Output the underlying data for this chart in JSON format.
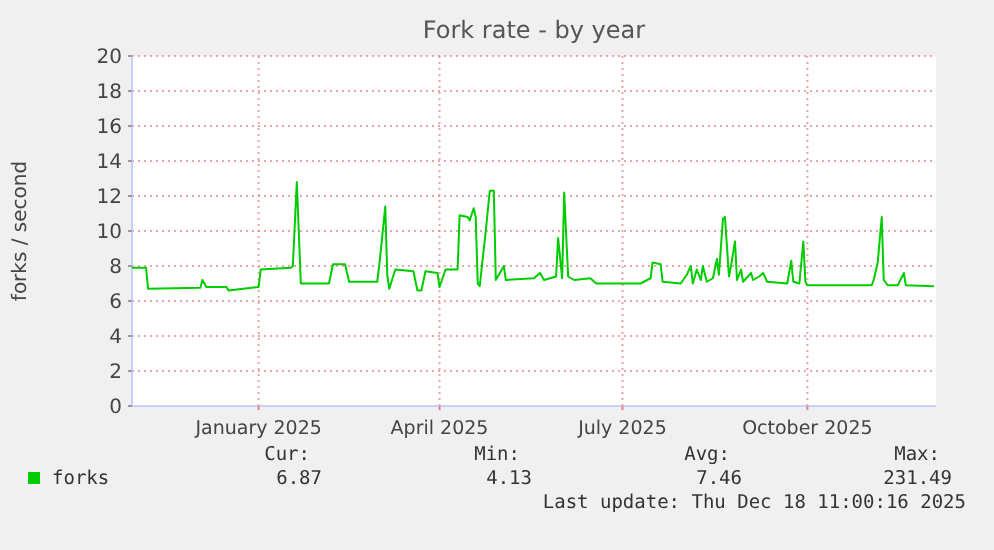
{
  "chart_data": {
    "type": "line",
    "title": "Fork rate - by year",
    "ylabel": "forks / second",
    "xlim": [
      "2024-11-13",
      "2025-12-18"
    ],
    "xticks": [
      {
        "value": "2025-01-15",
        "label": "January 2025"
      },
      {
        "value": "2025-04-15",
        "label": "April 2025"
      },
      {
        "value": "2025-07-15",
        "label": "July 2025"
      },
      {
        "value": "2025-10-15",
        "label": "October 2025"
      }
    ],
    "ylim": [
      0,
      20
    ],
    "yticks": [
      0,
      2,
      4,
      6,
      8,
      10,
      12,
      14,
      16,
      18,
      20
    ],
    "grid": true,
    "legend": "bottom left",
    "marker": "none",
    "line_style": "solid",
    "x": [
      "2024-11-13",
      "2024-11-20",
      "2024-11-21",
      "2024-12-17",
      "2024-12-18",
      "2024-12-20",
      "2024-12-30",
      "2024-12-31",
      "2025-01-15",
      "2025-01-16",
      "2025-01-31",
      "2025-02-01",
      "2025-02-03",
      "2025-02-05",
      "2025-02-19",
      "2025-02-21",
      "2025-02-27",
      "2025-03-01",
      "2025-03-15",
      "2025-03-16",
      "2025-03-19",
      "2025-03-20",
      "2025-03-21",
      "2025-03-24",
      "2025-04-02",
      "2025-04-04",
      "2025-04-06",
      "2025-04-08",
      "2025-04-14",
      "2025-04-15",
      "2025-04-18",
      "2025-04-24",
      "2025-04-25",
      "2025-04-29",
      "2025-04-30",
      "2025-05-02",
      "2025-05-03",
      "2025-05-04",
      "2025-05-05",
      "2025-05-08",
      "2025-05-10",
      "2025-05-12",
      "2025-05-13",
      "2025-05-17",
      "2025-05-18",
      "2025-06-01",
      "2025-06-04",
      "2025-06-06",
      "2025-06-12",
      "2025-06-13",
      "2025-06-15",
      "2025-06-16",
      "2025-06-18",
      "2025-06-21",
      "2025-06-29",
      "2025-07-02",
      "2025-07-24",
      "2025-07-29",
      "2025-07-30",
      "2025-08-03",
      "2025-08-04",
      "2025-08-13",
      "2025-08-16",
      "2025-08-18",
      "2025-08-19",
      "2025-08-21",
      "2025-08-23",
      "2025-08-24",
      "2025-08-26",
      "2025-08-29",
      "2025-08-31",
      "2025-09-01",
      "2025-09-03",
      "2025-09-04",
      "2025-09-06",
      "2025-09-07",
      "2025-09-09",
      "2025-09-10",
      "2025-09-12",
      "2025-09-13",
      "2025-09-17",
      "2025-09-18",
      "2025-09-21",
      "2025-09-23",
      "2025-09-25",
      "2025-10-05",
      "2025-10-07",
      "2025-10-08",
      "2025-10-11",
      "2025-10-13",
      "2025-10-14",
      "2025-10-15",
      "2025-11-16",
      "2025-11-17",
      "2025-11-19",
      "2025-11-21",
      "2025-11-22",
      "2025-11-24",
      "2025-11-29",
      "2025-12-02",
      "2025-12-03",
      "2025-12-17"
    ],
    "series": [
      {
        "name": "forks",
        "color": "#00cc00",
        "values": [
          7.9,
          7.9,
          6.7,
          6.75,
          7.2,
          6.8,
          6.8,
          6.6,
          6.8,
          7.8,
          7.9,
          8.0,
          12.8,
          7.0,
          7.0,
          8.1,
          8.1,
          7.1,
          7.1,
          8.0,
          11.4,
          7.5,
          6.7,
          7.8,
          7.7,
          6.6,
          6.6,
          7.7,
          7.6,
          6.8,
          7.8,
          7.8,
          10.9,
          10.8,
          10.6,
          11.3,
          10.8,
          7.0,
          6.85,
          10.0,
          12.3,
          12.3,
          7.2,
          8.0,
          7.2,
          7.3,
          7.6,
          7.2,
          7.4,
          9.6,
          7.3,
          12.2,
          7.4,
          7.2,
          7.3,
          7.0,
          7.0,
          7.3,
          8.2,
          8.1,
          7.1,
          7.0,
          7.5,
          8.0,
          7.0,
          7.8,
          7.2,
          8.0,
          7.1,
          7.3,
          8.4,
          7.5,
          10.7,
          10.8,
          7.4,
          8.0,
          9.4,
          7.2,
          7.8,
          7.1,
          7.6,
          7.2,
          7.4,
          7.6,
          7.1,
          7.0,
          8.3,
          7.1,
          7.0,
          9.4,
          7.1,
          6.9,
          6.9,
          7.2,
          8.2,
          10.8,
          7.2,
          6.9,
          6.9,
          7.6,
          6.9,
          6.85
        ]
      }
    ],
    "annotations": [
      "Cur:",
      "Min:",
      "Avg:",
      "Max:",
      "6.87",
      "4.13",
      "7.46",
      "231.49",
      "Last update: Thu Dec 18 11:00:16 2025"
    ]
  }
}
